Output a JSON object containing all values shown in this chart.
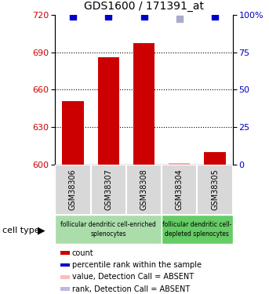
{
  "title": "GDS1600 / 171391_at",
  "samples": [
    "GSM38306",
    "GSM38307",
    "GSM38308",
    "GSM38304",
    "GSM38305"
  ],
  "bar_values": [
    651,
    686,
    697,
    601,
    610
  ],
  "bar_colors": [
    "#cc0000",
    "#cc0000",
    "#cc0000",
    "#ffaaaa",
    "#cc0000"
  ],
  "percentile_values": [
    99,
    99,
    99,
    97,
    99
  ],
  "percentile_colors": [
    "#0000cc",
    "#0000cc",
    "#0000cc",
    "#aaaacc",
    "#0000cc"
  ],
  "ymin": 600,
  "ymax": 720,
  "yticks": [
    600,
    630,
    660,
    690,
    720
  ],
  "right_yticks": [
    0,
    25,
    50,
    75,
    100
  ],
  "grid_lines": [
    630,
    660,
    690
  ],
  "cell_type_groups": [
    {
      "label": "follicular dendritic cell-enriched\nsplenocytes",
      "samples": [
        0,
        1,
        2
      ],
      "color": "#aaddaa"
    },
    {
      "label": "follicular dendritic cell-\ndepleted splenocytes",
      "samples": [
        3,
        4
      ],
      "color": "#66cc66"
    }
  ],
  "legend_items": [
    {
      "label": "count",
      "color": "#cc0000"
    },
    {
      "label": "percentile rank within the sample",
      "color": "#0000cc"
    },
    {
      "label": "value, Detection Call = ABSENT",
      "color": "#ffbbbb"
    },
    {
      "label": "rank, Detection Call = ABSENT",
      "color": "#bbbbdd"
    }
  ],
  "bar_width": 0.6,
  "marker_size": 6,
  "label_fontsize": 7.5,
  "tick_fontsize": 8
}
